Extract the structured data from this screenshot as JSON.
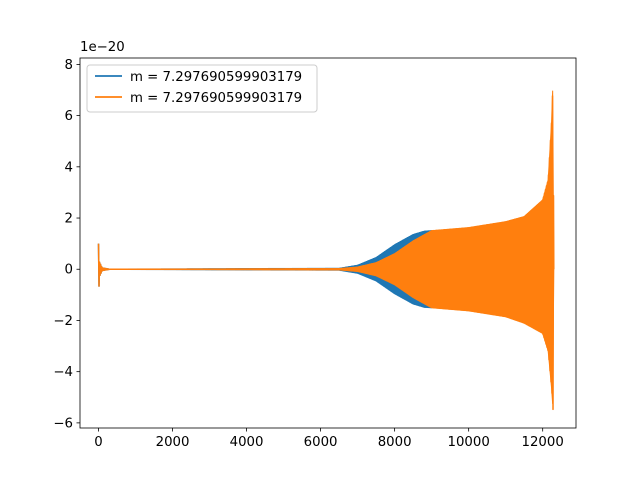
{
  "chart_data": {
    "type": "line",
    "title": "",
    "xlabel": "",
    "ylabel": "",
    "y_offset_label": "1e−20",
    "xlim": [
      -500,
      12900
    ],
    "ylim": [
      -6.2,
      8.25
    ],
    "x_ticks": [
      0,
      2000,
      4000,
      6000,
      8000,
      10000,
      12000
    ],
    "x_tick_labels": [
      "0",
      "2000",
      "4000",
      "6000",
      "8000",
      "10000",
      "12000"
    ],
    "y_ticks": [
      -6,
      -4,
      -2,
      0,
      2,
      4,
      6,
      8
    ],
    "y_tick_labels": [
      "−6",
      "−4",
      "−2",
      "0",
      "2",
      "4",
      "6",
      "8"
    ],
    "grid": false,
    "legend_position": "top-left",
    "series": [
      {
        "name": "m = 7.297690599903179",
        "color": "#1f77b4",
        "envelope_upper": [
          [
            0,
            1.0
          ],
          [
            20,
            0.3
          ],
          [
            100,
            0.05
          ],
          [
            300,
            0.0
          ],
          [
            6500,
            0.03
          ],
          [
            7000,
            0.15
          ],
          [
            7500,
            0.45
          ],
          [
            8000,
            0.95
          ],
          [
            8500,
            1.35
          ],
          [
            8800,
            1.48
          ],
          [
            9000,
            1.5
          ]
        ],
        "envelope_lower": [
          [
            0,
            -1.4
          ],
          [
            20,
            -0.3
          ],
          [
            100,
            -0.05
          ],
          [
            300,
            0.0
          ],
          [
            6500,
            -0.03
          ],
          [
            7000,
            -0.15
          ],
          [
            7500,
            -0.45
          ],
          [
            8000,
            -0.95
          ],
          [
            8500,
            -1.35
          ],
          [
            8800,
            -1.48
          ],
          [
            9000,
            -1.5
          ]
        ]
      },
      {
        "name": "m = 7.297690599903179",
        "color": "#ff7f0e",
        "envelope_upper": [
          [
            0,
            1.0
          ],
          [
            20,
            0.3
          ],
          [
            100,
            0.05
          ],
          [
            300,
            0.0
          ],
          [
            6500,
            0.02
          ],
          [
            7000,
            0.08
          ],
          [
            7500,
            0.25
          ],
          [
            8000,
            0.6
          ],
          [
            8500,
            1.1
          ],
          [
            9000,
            1.5
          ],
          [
            10000,
            1.62
          ],
          [
            11000,
            1.85
          ],
          [
            11500,
            2.05
          ],
          [
            12000,
            2.7
          ],
          [
            12150,
            3.5
          ],
          [
            12250,
            6.0
          ],
          [
            12280,
            7.5
          ],
          [
            12300,
            0.0
          ]
        ],
        "envelope_lower": [
          [
            0,
            -1.4
          ],
          [
            20,
            -0.3
          ],
          [
            100,
            -0.05
          ],
          [
            300,
            0.0
          ],
          [
            6500,
            -0.02
          ],
          [
            7000,
            -0.08
          ],
          [
            7500,
            -0.25
          ],
          [
            8000,
            -0.6
          ],
          [
            8500,
            -1.1
          ],
          [
            9000,
            -1.5
          ],
          [
            10000,
            -1.62
          ],
          [
            11000,
            -1.85
          ],
          [
            11500,
            -2.1
          ],
          [
            12000,
            -2.5
          ],
          [
            12150,
            -3.2
          ],
          [
            12250,
            -4.8
          ],
          [
            12280,
            -5.5
          ],
          [
            12300,
            0.0
          ]
        ]
      }
    ]
  }
}
